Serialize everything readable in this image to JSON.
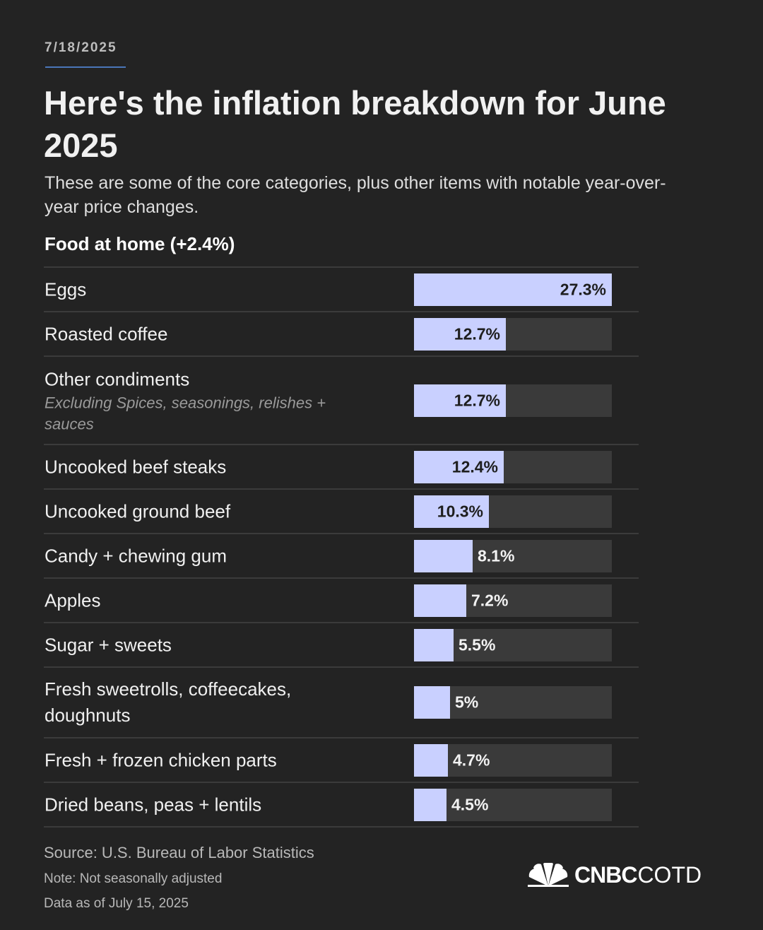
{
  "date": "7/18/2025",
  "title": "Here's the inflation breakdown for June 2025",
  "subtitle": "These are some of the core categories, plus other items with notable year-over-year price changes.",
  "section_label": "Food at home (+2.4%)",
  "chart_data": {
    "type": "bar",
    "orientation": "horizontal",
    "title": "Food at home (+2.4%)",
    "xlim": [
      0,
      27.3
    ],
    "unit": "%",
    "categories": [
      "Eggs",
      "Roasted coffee",
      "Other condiments",
      "Uncooked beef steaks",
      "Uncooked ground beef",
      "Candy + chewing gum",
      "Apples",
      "Sugar + sweets",
      "Fresh sweetrolls, coffeecakes, doughnuts",
      "Fresh + frozen chicken parts",
      "Dried beans, peas + lentils"
    ],
    "notes": [
      "",
      "",
      "Excluding Spices, seasonings, relishes + sauces",
      "",
      "",
      "",
      "",
      "",
      "",
      "",
      ""
    ],
    "values": [
      27.3,
      12.7,
      12.7,
      12.4,
      10.3,
      8.1,
      7.2,
      5.5,
      5,
      4.7,
      4.5
    ],
    "value_labels": [
      "27.3%",
      "12.7%",
      "12.7%",
      "12.4%",
      "10.3%",
      "8.1%",
      "7.2%",
      "5.5%",
      "5%",
      "4.7%",
      "4.5%"
    ]
  },
  "footer": {
    "source": "Source: U.S. Bureau of Labor Statistics",
    "note": "Note: Not seasonally adjusted",
    "data_as_of": "Data as of July 15, 2025"
  },
  "brand": {
    "cnbc": "CNBC",
    "cotd": "COTD"
  },
  "colors": {
    "bar": "#c9d0ff",
    "track": "#3a3a3a",
    "background": "#232323"
  }
}
